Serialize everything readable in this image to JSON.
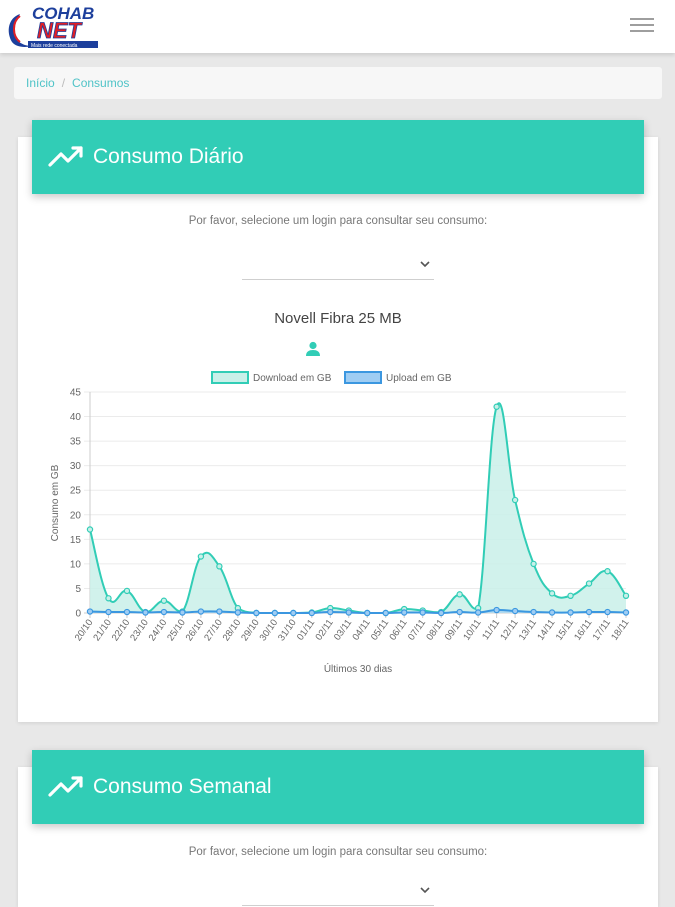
{
  "header": {
    "logo_top": "COHAB",
    "logo_main": "NET",
    "logo_tagline": "Mais rede conectada"
  },
  "breadcrumb": {
    "home": "Início",
    "separator": "/",
    "current": "Consumos"
  },
  "daily": {
    "title": "Consumo Diário",
    "prompt": "Por favor, selecione um login para consultar seu consumo:",
    "select_value": "",
    "plan_name": "Novell Fibra 25 MB"
  },
  "weekly": {
    "title": "Consumo Semanal",
    "prompt": "Por favor, selecione um login para consultar seu consumo:",
    "select_value": ""
  },
  "colors": {
    "accent": "#31cdb6",
    "download_line": "#31cdb6",
    "download_fill": "#c9f0e9",
    "upload_line": "#3b97e0",
    "upload_fill": "#9fcdf3",
    "link": "#4fc3c7"
  },
  "icons": {
    "menu": "hamburger-icon",
    "trend": "trending-up-icon",
    "user": "user-icon",
    "dropdown": "chevron-down-icon"
  },
  "chart_data": {
    "type": "area",
    "title": "",
    "xlabel": "Últimos 30 dias",
    "ylabel": "Consumo em GB",
    "ylim": [
      0,
      45
    ],
    "yticks": [
      0,
      5,
      10,
      15,
      20,
      25,
      30,
      35,
      40,
      45
    ],
    "grid": true,
    "legend": "top-center",
    "categories": [
      "20/10",
      "21/10",
      "22/10",
      "23/10",
      "24/10",
      "25/10",
      "26/10",
      "27/10",
      "28/10",
      "29/10",
      "30/10",
      "31/10",
      "01/11",
      "02/11",
      "03/11",
      "04/11",
      "05/11",
      "06/11",
      "07/11",
      "08/11",
      "09/11",
      "10/11",
      "11/11",
      "12/11",
      "13/11",
      "14/11",
      "15/11",
      "16/11",
      "17/11",
      "18/11"
    ],
    "series": [
      {
        "name": "Download em GB",
        "values": [
          17,
          3,
          4.5,
          0.2,
          2.5,
          0.3,
          11.5,
          9.5,
          1,
          0,
          0,
          0,
          0.1,
          1,
          0.5,
          0,
          0,
          0.8,
          0.5,
          0.2,
          3.8,
          1,
          42,
          23,
          10,
          4,
          3.5,
          6,
          8.5,
          3.5
        ]
      },
      {
        "name": "Upload em GB",
        "values": [
          0.3,
          0.2,
          0.2,
          0.1,
          0.2,
          0.1,
          0.3,
          0.3,
          0.1,
          0,
          0,
          0,
          0,
          0.2,
          0.1,
          0,
          0,
          0.1,
          0.1,
          0,
          0.2,
          0.1,
          0.6,
          0.4,
          0.2,
          0.1,
          0.1,
          0.2,
          0.2,
          0.1
        ]
      }
    ]
  }
}
